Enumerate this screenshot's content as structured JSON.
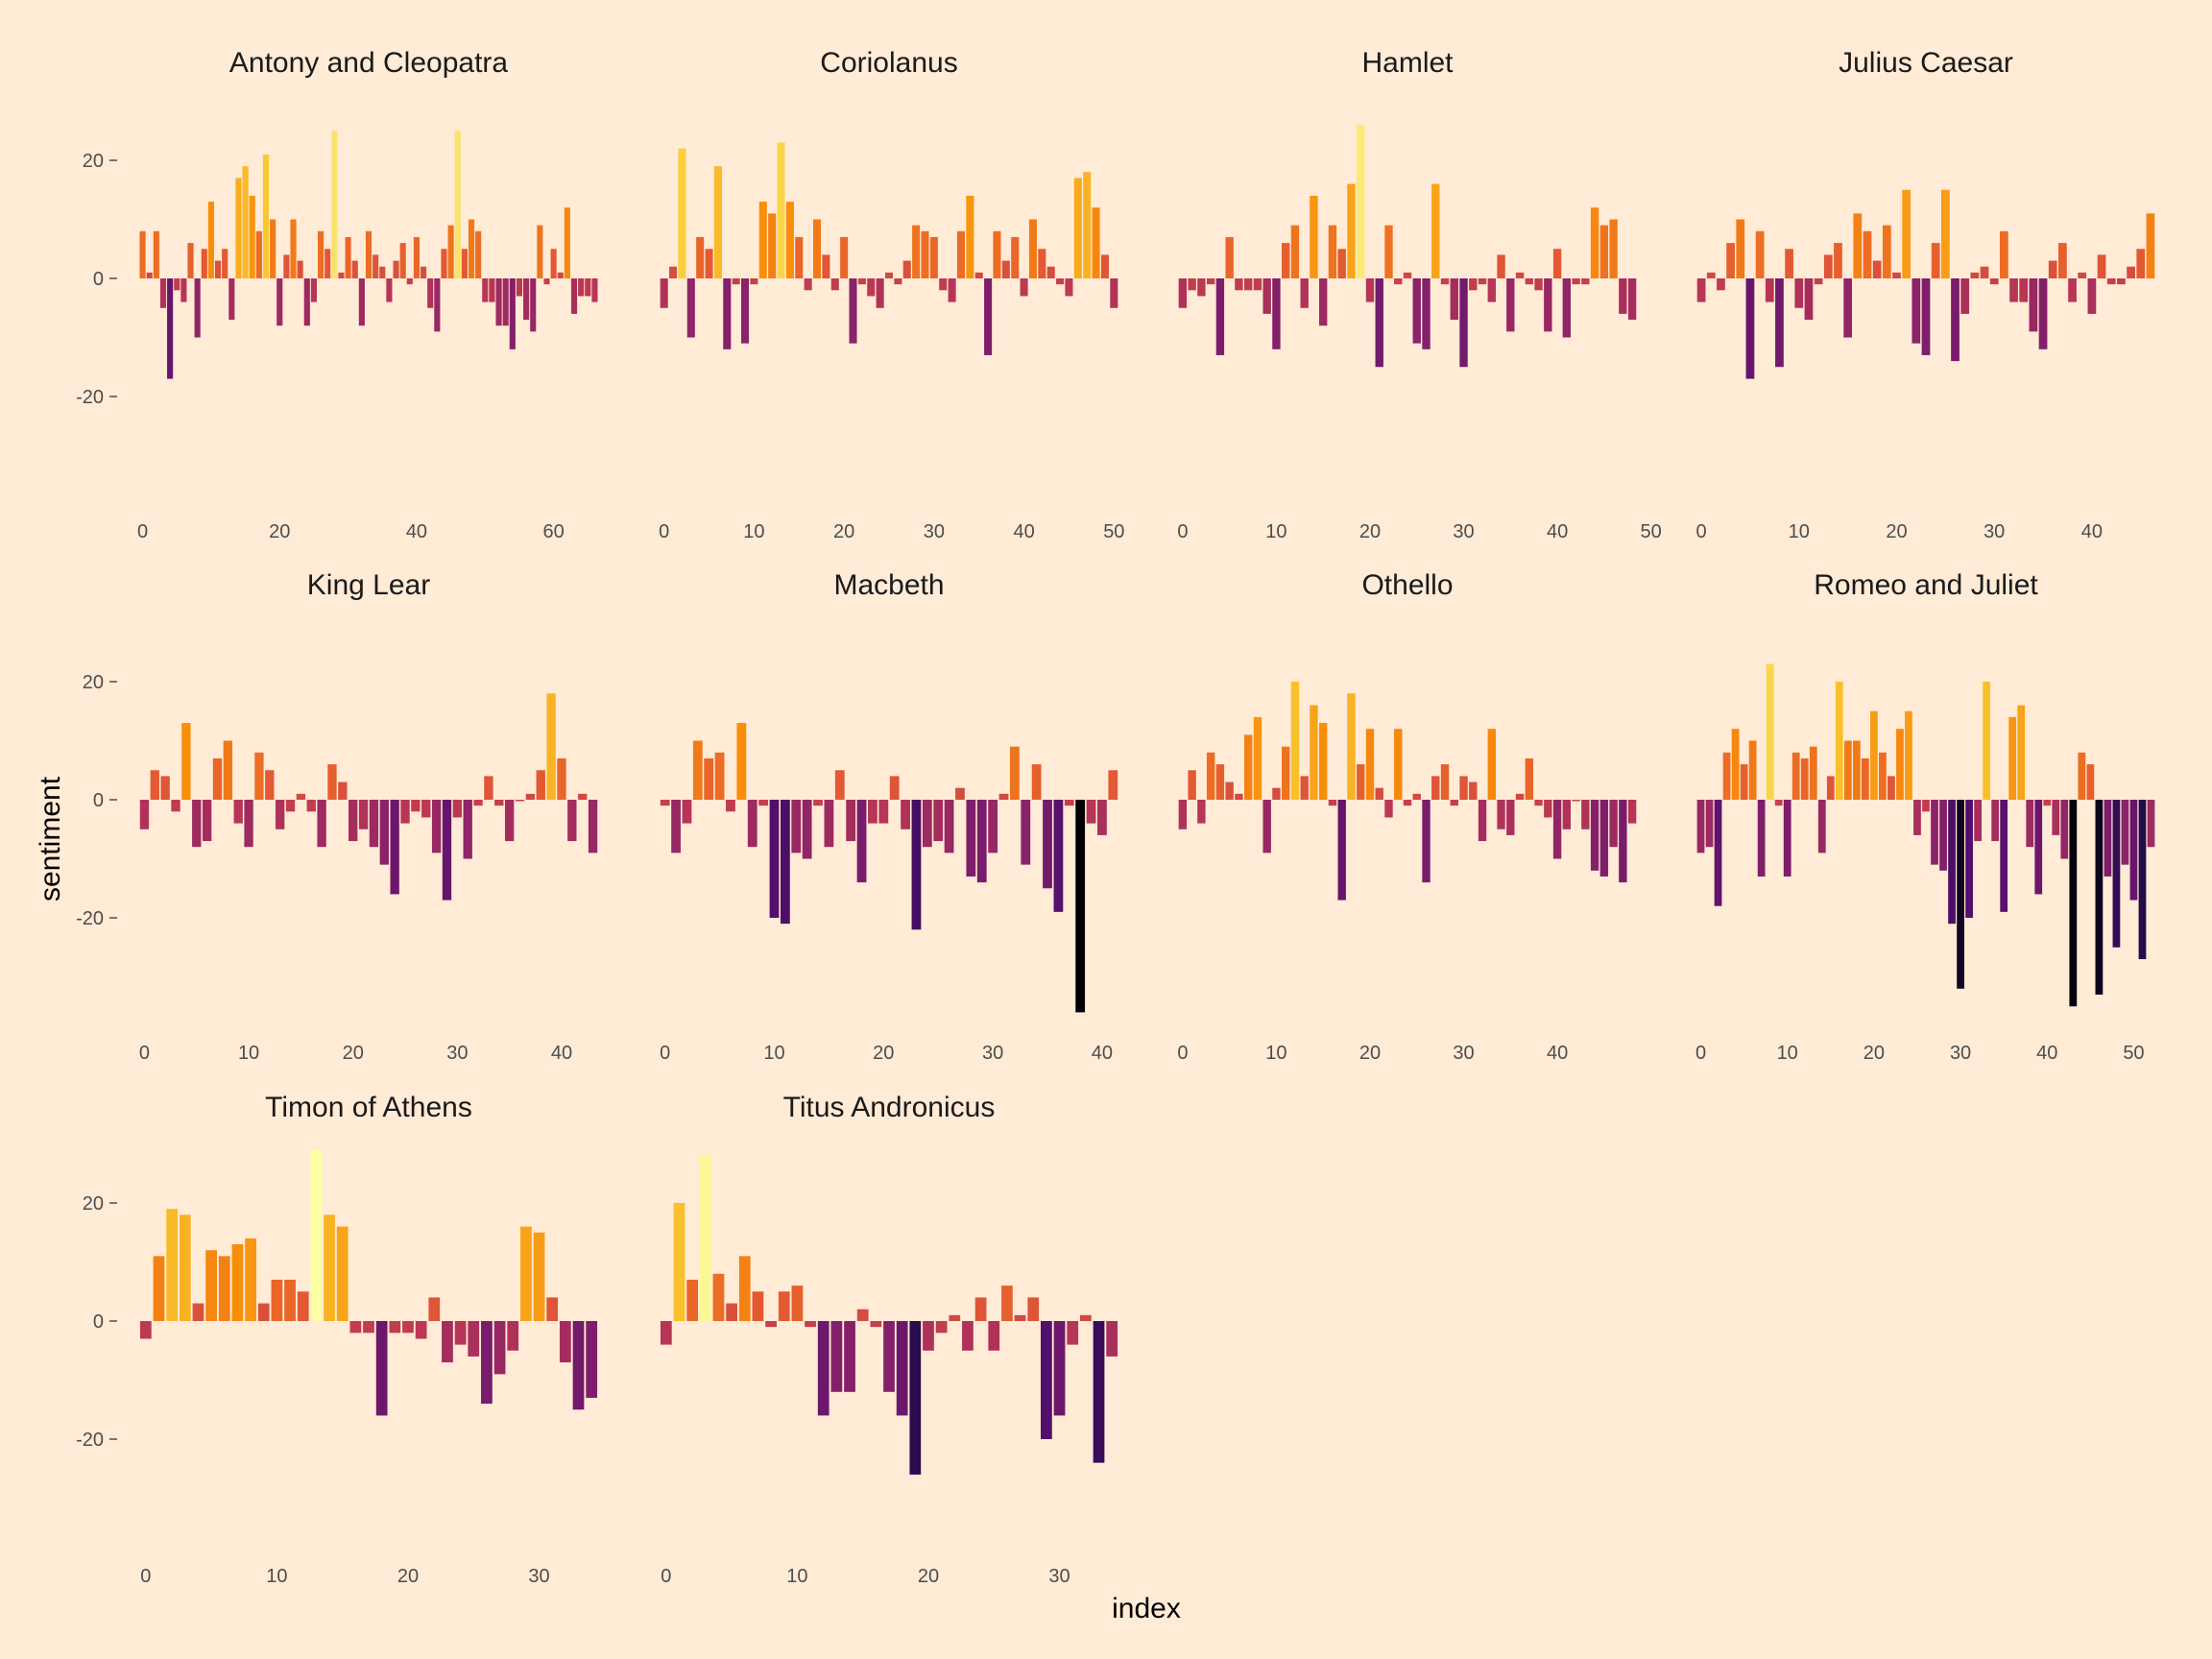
{
  "chart_data": {
    "type": "bar",
    "xlabel": "index",
    "ylabel": "sentiment",
    "ylim": [
      -36,
      29
    ],
    "yticks": [
      -20,
      0,
      20
    ],
    "grid": false,
    "legend": "none",
    "fill_scale": "inferno (by sentiment)",
    "colors": {
      "background": "#ffebd6",
      "text": "#1a1a1a",
      "ticks": "#4d4d4d"
    },
    "panels": [
      {
        "title": "Antony and Cleopatra",
        "xticks": [
          0,
          20,
          40,
          60
        ],
        "values": [
          8,
          1,
          8,
          -5,
          -17,
          -2,
          -4,
          6,
          -10,
          5,
          13,
          3,
          5,
          -7,
          17,
          19,
          14,
          8,
          21,
          10,
          -8,
          4,
          10,
          3,
          -8,
          -4,
          8,
          5,
          25,
          1,
          7,
          3,
          -8,
          8,
          4,
          2,
          -4,
          3,
          6,
          -1,
          7,
          2,
          -5,
          -9,
          5,
          9,
          25,
          5,
          10,
          8,
          -4,
          -4,
          -8,
          -8,
          -12,
          -3,
          -7,
          -9,
          9,
          -1,
          5,
          1,
          12,
          -6,
          -3,
          -3,
          -4
        ]
      },
      {
        "title": "Coriolanus",
        "xticks": [
          0,
          10,
          20,
          30,
          40,
          50
        ],
        "values": [
          -5,
          2,
          22,
          -10,
          7,
          5,
          19,
          -12,
          -1,
          -11,
          -1,
          13,
          11,
          23,
          13,
          7,
          -2,
          10,
          4,
          -2,
          7,
          -11,
          -1,
          -3,
          -5,
          1,
          -1,
          3,
          9,
          8,
          7,
          -2,
          -4,
          8,
          14,
          1,
          -13,
          8,
          3,
          7,
          -3,
          10,
          5,
          2,
          -1,
          -3,
          17,
          18,
          12,
          4,
          -5
        ]
      },
      {
        "title": "Hamlet",
        "xticks": [
          0,
          10,
          20,
          30,
          40,
          50
        ],
        "values": [
          -5,
          -2,
          -3,
          -1,
          -13,
          7,
          -2,
          -2,
          -2,
          -6,
          -12,
          6,
          9,
          -5,
          14,
          -8,
          9,
          5,
          16,
          26,
          -4,
          -15,
          9,
          -1,
          1,
          -11,
          -12,
          16,
          -1,
          -7,
          -15,
          -2,
          -1,
          -4,
          4,
          -9,
          1,
          -1,
          -2,
          -9,
          5,
          -10,
          -1,
          -1,
          12,
          9,
          10,
          -6,
          -7
        ]
      },
      {
        "title": "Julius Caesar",
        "xticks": [
          0,
          10,
          20,
          30,
          40
        ],
        "values": [
          -4,
          1,
          -2,
          6,
          10,
          -17,
          8,
          -4,
          -15,
          5,
          -5,
          -7,
          -1,
          4,
          6,
          -10,
          11,
          8,
          3,
          9,
          1,
          15,
          -11,
          -13,
          6,
          15,
          -14,
          -6,
          1,
          2,
          -1,
          8,
          -4,
          -4,
          -9,
          -12,
          3,
          6,
          -4,
          1,
          -6,
          4,
          -1,
          -1,
          2,
          5,
          11
        ]
      },
      {
        "title": "King Lear",
        "xticks": [
          0,
          10,
          20,
          30,
          40
        ],
        "values": [
          -5,
          5,
          4,
          -2,
          13,
          -8,
          -7,
          7,
          10,
          -4,
          -8,
          8,
          5,
          -5,
          -2,
          1,
          -2,
          -8,
          6,
          3,
          -7,
          -5,
          -8,
          -11,
          -16,
          -4,
          -2,
          -3,
          -9,
          -17,
          -3,
          -10,
          -1,
          4,
          -1,
          -7,
          0,
          1,
          5,
          18,
          7,
          -7,
          1,
          -9
        ]
      },
      {
        "title": "Macbeth",
        "xticks": [
          0,
          10,
          20,
          30,
          40
        ],
        "values": [
          -1,
          -9,
          -4,
          10,
          7,
          8,
          -2,
          13,
          -8,
          -1,
          -20,
          -21,
          -9,
          -10,
          -1,
          -8,
          5,
          -7,
          -14,
          -4,
          -4,
          4,
          -5,
          -22,
          -8,
          -7,
          -9,
          2,
          -13,
          -14,
          -9,
          1,
          9,
          -11,
          6,
          -15,
          -19,
          -1,
          -36,
          -4,
          -6,
          5
        ]
      },
      {
        "title": "Othello",
        "xticks": [
          0,
          10,
          20,
          30,
          40
        ],
        "values": [
          -5,
          5,
          -4,
          8,
          6,
          3,
          1,
          11,
          14,
          -9,
          2,
          9,
          20,
          4,
          16,
          13,
          -1,
          -17,
          18,
          6,
          12,
          2,
          -3,
          12,
          -1,
          1,
          -14,
          4,
          6,
          -1,
          4,
          3,
          -7,
          12,
          -5,
          -6,
          1,
          7,
          -1,
          -3,
          -10,
          -5,
          0,
          -5,
          -12,
          -13,
          -8,
          -14,
          -4
        ]
      },
      {
        "title": "Romeo and Juliet",
        "xticks": [
          0,
          10,
          20,
          30,
          40,
          50
        ],
        "values": [
          -9,
          -8,
          -18,
          8,
          12,
          6,
          10,
          -13,
          23,
          -1,
          -13,
          8,
          7,
          9,
          -9,
          4,
          20,
          10,
          10,
          7,
          15,
          8,
          4,
          12,
          15,
          -6,
          -2,
          -11,
          -12,
          -21,
          -32,
          -20,
          -7,
          20,
          -7,
          -19,
          14,
          16,
          -8,
          -16,
          -1,
          -6,
          -10,
          -35,
          8,
          6,
          -33,
          -13,
          -25,
          -11,
          -17,
          -27,
          -8
        ]
      },
      {
        "title": "Timon of Athens",
        "xticks": [
          0,
          10,
          20,
          30
        ],
        "values": [
          -3,
          11,
          19,
          18,
          3,
          12,
          11,
          13,
          14,
          3,
          7,
          7,
          5,
          29,
          18,
          16,
          -2,
          -2,
          -16,
          -2,
          -2,
          -3,
          4,
          -7,
          -4,
          -6,
          -14,
          -9,
          -5,
          16,
          15,
          4,
          -7,
          -15,
          -13
        ]
      },
      {
        "title": "Titus Andronicus",
        "xticks": [
          0,
          10,
          20,
          30
        ],
        "values": [
          -4,
          20,
          7,
          28,
          8,
          3,
          11,
          5,
          -1,
          5,
          6,
          -1,
          -16,
          -12,
          -12,
          2,
          -1,
          -12,
          -16,
          -26,
          -5,
          -2,
          1,
          -5,
          4,
          -5,
          6,
          1,
          4,
          -20,
          -16,
          -4,
          1,
          -24,
          -6
        ]
      }
    ]
  }
}
